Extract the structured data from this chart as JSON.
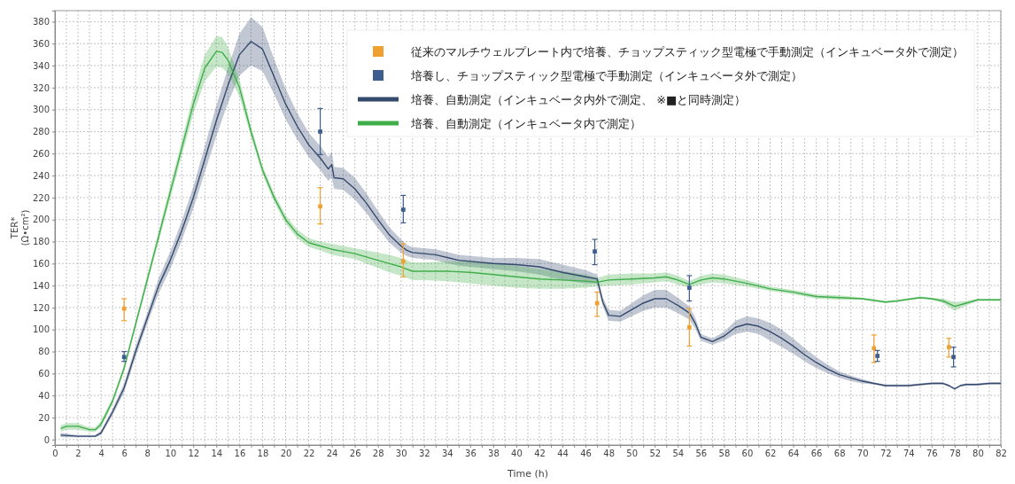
{
  "chart_data": {
    "type": "line",
    "xlabel": "Time (h)",
    "ylabel": "TER*\n(Ω•cm²)",
    "xlim": [
      0,
      82
    ],
    "ylim": [
      -5,
      390
    ],
    "xticks": [
      0,
      {
        "value": 1,
        "label": null
      },
      2,
      {
        "value": 3,
        "label": null
      },
      4,
      {
        "value": 5,
        "label": null
      },
      6,
      {
        "value": 7,
        "label": null
      },
      8,
      {
        "value": 9,
        "label": null
      },
      10,
      {
        "value": 11,
        "label": null
      },
      12,
      {
        "value": 13,
        "label": null
      },
      14,
      {
        "value": 15,
        "label": null
      },
      16,
      {
        "value": 17,
        "label": null
      },
      18,
      {
        "value": 19,
        "label": null
      },
      20,
      {
        "value": 21,
        "label": null
      },
      22,
      {
        "value": 23,
        "label": null
      },
      24,
      {
        "value": 25,
        "label": null
      },
      26,
      {
        "value": 27,
        "label": null
      },
      28,
      {
        "value": 29,
        "label": null
      },
      30,
      {
        "value": 31,
        "label": null
      },
      32,
      {
        "value": 33,
        "label": null
      },
      34,
      {
        "value": 35,
        "label": null
      },
      36,
      {
        "value": 37,
        "label": null
      },
      38,
      {
        "value": 39,
        "label": null
      },
      40,
      {
        "value": 41,
        "label": null
      },
      42,
      {
        "value": 43,
        "label": null
      },
      44,
      {
        "value": 45,
        "label": null
      },
      46,
      {
        "value": 47,
        "label": null
      },
      48,
      {
        "value": 49,
        "label": null
      },
      50,
      {
        "value": 51,
        "label": null
      },
      52,
      {
        "value": 53,
        "label": null
      },
      54,
      {
        "value": 55,
        "label": null
      },
      56,
      {
        "value": 57,
        "label": null
      },
      58,
      {
        "value": 59,
        "label": null
      },
      60,
      {
        "value": 61,
        "label": null
      },
      62,
      {
        "value": 63,
        "label": null
      },
      64,
      {
        "value": 65,
        "label": null
      },
      66,
      {
        "value": 67,
        "label": null
      },
      68,
      {
        "value": 69,
        "label": null
      },
      70,
      {
        "value": 71,
        "label": null
      },
      72,
      {
        "value": 73,
        "label": null
      },
      74,
      {
        "value": 75,
        "label": null
      },
      76,
      {
        "value": 77,
        "label": null
      },
      78,
      {
        "value": 79,
        "label": null
      },
      80,
      {
        "value": 81,
        "label": null
      },
      82
    ],
    "yticks": [
      0,
      20,
      40,
      60,
      80,
      100,
      120,
      140,
      160,
      180,
      200,
      220,
      240,
      260,
      280,
      300,
      320,
      340,
      360,
      380
    ],
    "grid": true,
    "legend": "top right",
    "series": [
      {
        "name": "従来のマルチウェルプレート内で培養、チョップスティック型電極で手動測定（インキュベータ外で測定）",
        "type": "scatter",
        "marker": "square",
        "color": "#f0a030",
        "x": [
          6,
          23,
          30.2,
          47,
          55,
          71,
          77.5
        ],
        "values": [
          119,
          212,
          162,
          124,
          102,
          83,
          84
        ],
        "errors": [
          [
            108,
            128
          ],
          [
            196,
            229
          ],
          [
            148,
            178
          ],
          [
            112,
            134
          ],
          [
            85,
            119
          ],
          [
            70,
            95
          ],
          [
            75,
            92
          ]
        ]
      },
      {
        "name": "培養し、チョップスティック型電極で手動測定（インキュベータ外で測定）",
        "type": "scatter",
        "marker": "square",
        "color": "#3d5d8f",
        "x": [
          6,
          23,
          30.2,
          46.8,
          55,
          71.3,
          77.9
        ],
        "values": [
          75,
          280,
          209,
          171,
          138,
          76,
          75
        ],
        "errors": [
          [
            71,
            80
          ],
          [
            259,
            301
          ],
          [
            197,
            222
          ],
          [
            159,
            182
          ],
          [
            126,
            149
          ],
          [
            71,
            81
          ],
          [
            66,
            84
          ]
        ]
      },
      {
        "name": "培養、自動測定（インキュベータ内外で測定、 ※■と同時測定）",
        "marker": "none",
        "color": "#34496e",
        "x": [
          0.5,
          2,
          3.5,
          4,
          5,
          6,
          7,
          8,
          9,
          10,
          11,
          12,
          13,
          14,
          15,
          16,
          17,
          18,
          19,
          20,
          21,
          22,
          23,
          23.7,
          24,
          24.2,
          25,
          26,
          27,
          28,
          29,
          30,
          30.5,
          31,
          33,
          35,
          38,
          40,
          42,
          44,
          46,
          47,
          47.5,
          48,
          49,
          50,
          51,
          52,
          53,
          54,
          55,
          55.5,
          56,
          57,
          58,
          59,
          60,
          61,
          62,
          63,
          64,
          65,
          66,
          67,
          68,
          69,
          70,
          71,
          72,
          73,
          74,
          75,
          76,
          77,
          77.5,
          78,
          78.5,
          79,
          80,
          81,
          82
        ],
        "values": [
          4,
          3,
          3,
          6,
          25,
          47,
          80,
          110,
          140,
          163,
          190,
          220,
          255,
          290,
          322,
          350,
          362,
          355,
          330,
          305,
          285,
          268,
          256,
          246,
          250,
          238,
          237,
          228,
          215,
          200,
          186,
          176,
          172,
          170,
          168,
          163,
          160,
          159,
          157,
          152,
          148,
          146,
          125,
          113,
          112,
          118,
          124,
          128,
          128,
          122,
          115,
          106,
          93,
          89,
          94,
          102,
          105,
          103,
          98,
          92,
          85,
          77,
          70,
          64,
          59,
          56,
          53,
          51,
          49,
          49,
          49,
          50,
          51,
          51,
          49,
          46,
          49,
          50,
          50,
          51,
          51
        ],
        "lower": [
          2,
          2,
          2,
          4,
          22,
          43,
          75,
          105,
          133,
          155,
          181,
          210,
          243,
          276,
          306,
          331,
          340,
          335,
          314,
          291,
          273,
          257,
          245,
          235,
          238,
          228,
          227,
          218,
          206,
          192,
          179,
          170,
          167,
          165,
          163,
          158,
          155,
          153,
          150,
          145,
          142,
          142,
          121,
          108,
          107,
          112,
          117,
          120,
          120,
          115,
          109,
          101,
          90,
          86,
          90,
          96,
          98,
          96,
          90,
          84,
          78,
          71,
          65,
          60,
          56,
          53,
          51,
          50,
          48,
          48,
          48,
          49,
          50,
          50,
          48,
          45,
          48,
          49,
          49,
          50,
          50
        ],
        "upper": [
          6,
          4,
          4,
          8,
          28,
          51,
          85,
          115,
          147,
          171,
          199,
          230,
          267,
          304,
          338,
          369,
          384,
          375,
          346,
          319,
          297,
          279,
          267,
          257,
          262,
          248,
          247,
          238,
          224,
          208,
          193,
          182,
          177,
          175,
          173,
          168,
          165,
          165,
          164,
          159,
          154,
          150,
          129,
          118,
          117,
          124,
          131,
          136,
          136,
          129,
          121,
          111,
          96,
          92,
          98,
          108,
          112,
          110,
          106,
          100,
          92,
          83,
          75,
          68,
          62,
          58,
          55,
          52,
          50,
          50,
          50,
          51,
          52,
          52,
          50,
          47,
          50,
          51,
          51,
          52,
          52
        ]
      },
      {
        "name": "培養、自動測定（インキュベータ内で測定）",
        "marker": "none",
        "color": "#3fae4a",
        "x": [
          0.5,
          1,
          2,
          3,
          3.5,
          4,
          5,
          6,
          7,
          8,
          9,
          10,
          11,
          12,
          13,
          14,
          14.5,
          15,
          16,
          17,
          18,
          19,
          20,
          21,
          22,
          23,
          24,
          25,
          26,
          27,
          28,
          29,
          30,
          31,
          32,
          34,
          36,
          38,
          40,
          42,
          44,
          46,
          47,
          48,
          50,
          52,
          53,
          54,
          55,
          56,
          57,
          58,
          60,
          62,
          64,
          66,
          68,
          70,
          72,
          73,
          75,
          76,
          77,
          78,
          79,
          80,
          82
        ],
        "values": [
          10,
          12,
          12,
          9,
          9,
          14,
          35,
          65,
          105,
          145,
          185,
          225,
          265,
          305,
          338,
          353,
          352,
          345,
          320,
          280,
          245,
          220,
          200,
          187,
          179,
          176,
          173,
          171,
          169,
          166,
          163,
          160,
          157,
          153,
          153,
          153,
          152,
          150,
          148,
          146,
          145,
          144,
          143,
          145,
          146,
          147,
          148,
          145,
          141,
          145,
          147,
          146,
          142,
          137,
          134,
          130,
          129,
          128,
          125,
          126,
          129,
          128,
          126,
          121,
          124,
          127,
          127
        ],
        "lower": [
          7,
          9,
          9,
          7,
          7,
          11,
          32,
          62,
          102,
          141,
          180,
          219,
          258,
          296,
          326,
          339,
          338,
          333,
          312,
          275,
          241,
          216,
          196,
          183,
          175,
          172,
          168,
          166,
          164,
          160,
          156,
          152,
          149,
          145,
          145,
          144,
          142,
          140,
          138,
          137,
          137,
          138,
          139,
          140,
          141,
          143,
          144,
          141,
          138,
          141,
          143,
          142,
          139,
          135,
          132,
          128,
          127,
          127,
          124,
          125,
          128,
          127,
          124,
          117,
          122,
          126,
          126
        ],
        "upper": [
          13,
          15,
          15,
          11,
          11,
          17,
          38,
          68,
          108,
          149,
          190,
          231,
          272,
          314,
          350,
          367,
          366,
          357,
          328,
          285,
          249,
          224,
          204,
          191,
          183,
          180,
          178,
          176,
          174,
          172,
          170,
          168,
          165,
          161,
          161,
          162,
          162,
          160,
          158,
          155,
          153,
          150,
          147,
          150,
          151,
          151,
          152,
          149,
          144,
          149,
          151,
          150,
          145,
          139,
          136,
          132,
          131,
          129,
          126,
          127,
          130,
          129,
          128,
          125,
          126,
          128,
          128
        ]
      }
    ]
  }
}
